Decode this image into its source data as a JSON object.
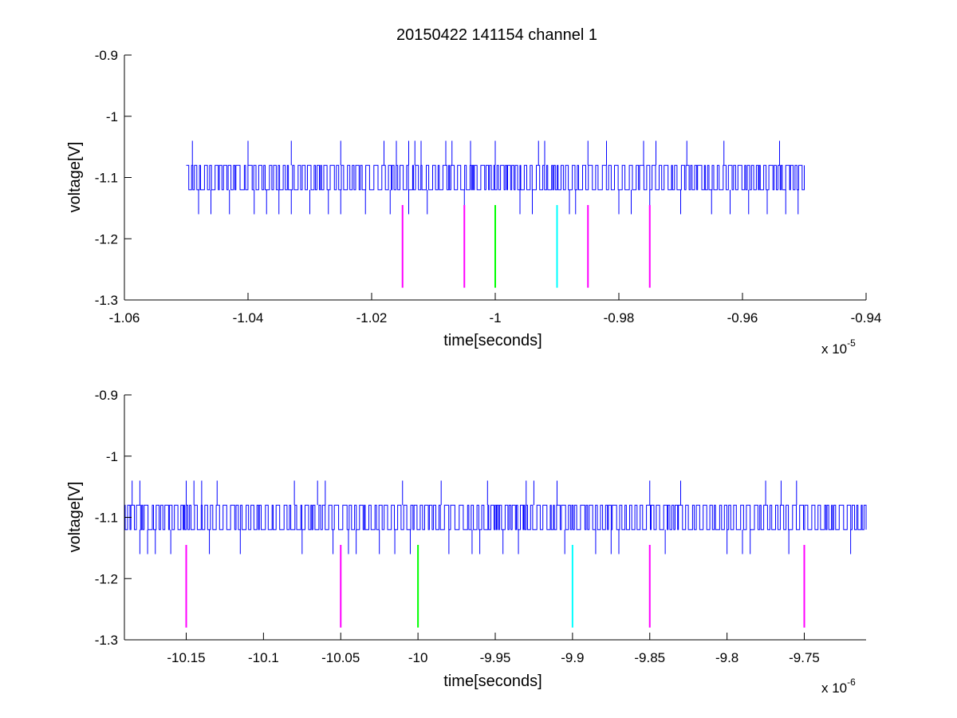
{
  "chart_data": [
    {
      "type": "line",
      "title": "20150422 141154 channel 1",
      "xlabel": "time[seconds]",
      "ylabel": "voltage[V]",
      "x_multiplier_text": {
        "base": "x 10",
        "exp": "-5"
      },
      "xlim": [
        -1.06,
        -0.94
      ],
      "ylim": [
        -1.3,
        -0.9
      ],
      "xticks": [
        -1.06,
        -1.04,
        -1.02,
        -1.0,
        -0.98,
        -0.96,
        -0.94
      ],
      "yticks": [
        -1.3,
        -1.2,
        -1.1,
        -1.0,
        -0.9
      ],
      "xtick_labels": [
        "-1.06",
        "-1.04",
        "-1.02",
        "-1",
        "-0.98",
        "-0.96",
        "-0.94"
      ],
      "ytick_labels": [
        "-1.3",
        "-1.2",
        "-1.1",
        "-1",
        "-0.9"
      ],
      "grid": false,
      "series": [
        {
          "color": "#0000ff",
          "x_range": [
            -1.05,
            -0.95
          ],
          "levels": [
            -1.08,
            -1.12
          ],
          "up_spikes": [
            -1.049,
            -1.04,
            -1.033,
            -1.025,
            -1.018,
            -1.016,
            -1.014,
            -1.013,
            -1.012,
            -1.008,
            -1.007,
            -1.004,
            -1.0,
            -0.993,
            -0.992,
            -0.985,
            -0.982,
            -0.976,
            -0.974,
            -0.969,
            -0.963,
            -0.954
          ],
          "up_spike_value": -1.04,
          "down_spikes": [
            -1.048,
            -1.046,
            -1.043,
            -1.039,
            -1.037,
            -1.035,
            -1.033,
            -1.03,
            -1.027,
            -1.025,
            -1.021,
            -1.017,
            -1.014,
            -1.011,
            -1.005,
            -0.996,
            -0.994,
            -0.988,
            -0.987,
            -0.98,
            -0.978,
            -0.975,
            -0.97,
            -0.965,
            -0.962,
            -0.959,
            -0.956,
            -0.953,
            -0.951
          ],
          "down_spike_value": -1.16
        }
      ],
      "markers": [
        {
          "x": -1.015,
          "color": "#ff00ff"
        },
        {
          "x": -1.005,
          "color": "#ff00ff"
        },
        {
          "x": -1.0,
          "color": "#00ff00"
        },
        {
          "x": -0.99,
          "color": "#00ffff"
        },
        {
          "x": -0.985,
          "color": "#ff00ff"
        },
        {
          "x": -0.975,
          "color": "#ff00ff"
        }
      ],
      "marker_y_range": [
        -1.28,
        -1.145
      ]
    },
    {
      "type": "line",
      "title": "",
      "xlabel": "time[seconds]",
      "ylabel": "voltage[V]",
      "x_multiplier_text": {
        "base": "x 10",
        "exp": "-6"
      },
      "xlim": [
        -10.19,
        -9.71
      ],
      "ylim": [
        -1.3,
        -0.9
      ],
      "xticks": [
        -10.15,
        -10.1,
        -10.05,
        -10.0,
        -9.95,
        -9.9,
        -9.85,
        -9.8,
        -9.75
      ],
      "yticks": [
        -1.3,
        -1.2,
        -1.1,
        -1.0,
        -0.9
      ],
      "xtick_labels": [
        "-10.15",
        "-10.1",
        "-10.05",
        "-10",
        "-9.95",
        "-9.9",
        "-9.85",
        "-9.8",
        "-9.75"
      ],
      "ytick_labels": [
        "-1.3",
        "-1.2",
        "-1.1",
        "-1",
        "-0.9"
      ],
      "grid": false,
      "series": [
        {
          "color": "#0000ff",
          "x_range": [
            -10.19,
            -9.71
          ],
          "levels": [
            -1.08,
            -1.12
          ],
          "up_spikes": [
            -10.185,
            -10.18,
            -10.15,
            -10.145,
            -10.14,
            -10.13,
            -10.08,
            -10.065,
            -10.06,
            -10.01,
            -9.985,
            -9.955,
            -9.93,
            -9.925,
            -9.91,
            -9.85,
            -9.83,
            -9.775,
            -9.765,
            -9.755
          ],
          "up_spike_value": -1.04,
          "down_spikes": [
            -10.18,
            -10.175,
            -10.17,
            -10.16,
            -10.135,
            -10.115,
            -10.075,
            -10.055,
            -10.045,
            -10.04,
            -10.025,
            -10.015,
            -10.005,
            -9.98,
            -9.965,
            -9.96,
            -9.945,
            -9.935,
            -9.905,
            -9.885,
            -9.875,
            -9.87,
            -9.84,
            -9.8,
            -9.79,
            -9.785,
            -9.76,
            -9.72
          ],
          "down_spike_value": -1.16
        }
      ],
      "markers": [
        {
          "x": -10.15,
          "color": "#ff00ff"
        },
        {
          "x": -10.05,
          "color": "#ff00ff"
        },
        {
          "x": -10.0,
          "color": "#00ff00"
        },
        {
          "x": -9.9,
          "color": "#00ffff"
        },
        {
          "x": -9.85,
          "color": "#ff00ff"
        },
        {
          "x": -9.75,
          "color": "#ff00ff"
        }
      ],
      "marker_y_range": [
        -1.28,
        -1.145
      ]
    }
  ]
}
